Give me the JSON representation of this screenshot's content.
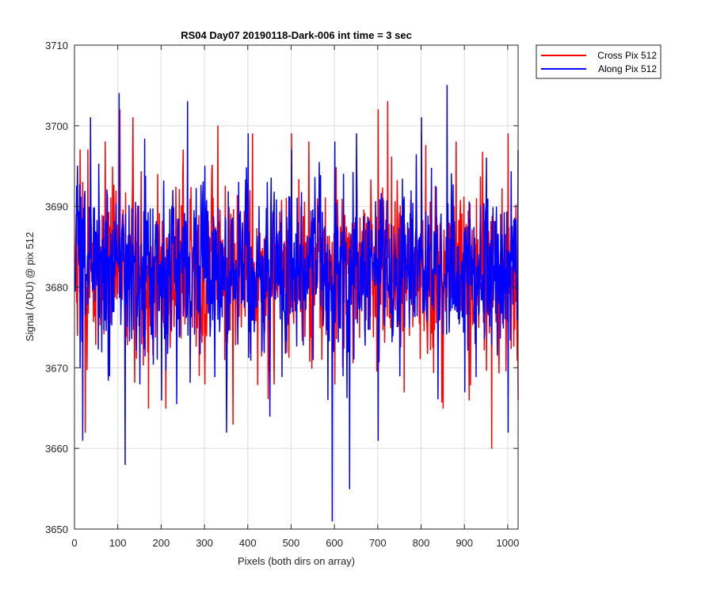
{
  "chart_data": {
    "type": "line",
    "title": "RS04 Day07 20190118-Dark-006 int time = 3 sec",
    "xlabel": "Pixels (both dirs on array)",
    "ylabel": "Signal (ADU) @ pix 512",
    "xlim": [
      0,
      1024
    ],
    "ylim": [
      3650,
      3710
    ],
    "xticks": [
      0,
      100,
      200,
      300,
      400,
      500,
      600,
      700,
      800,
      900,
      1000
    ],
    "yticks": [
      3650,
      3660,
      3670,
      3680,
      3690,
      3700,
      3710
    ],
    "grid": true,
    "legend_position": "outside-top-right",
    "series": [
      {
        "name": "Cross Pix 512",
        "color": "#ff0000",
        "mean": 3682,
        "approx_range": [
          3660,
          3702
        ],
        "x": [
          0,
          6,
          12,
          18,
          24,
          30,
          70,
          104,
          134,
          170,
          210,
          250,
          300,
          330,
          365,
          410,
          460,
          500,
          540,
          600,
          650,
          700,
          722,
          760,
          800,
          850,
          880,
          910,
          962,
          1000,
          1023
        ],
        "values": [
          3682,
          3674,
          3697,
          3693,
          3662,
          3697,
          3698,
          3702,
          3701,
          3665,
          3665,
          3697,
          3668,
          3700,
          3663,
          3699,
          3668,
          3699,
          3698,
          3668,
          3696,
          3702,
          3703,
          3667,
          3699,
          3665,
          3698,
          3666,
          3660,
          3699,
          3666
        ]
      },
      {
        "name": "Along Pix 512",
        "color": "#0000ff",
        "mean": 3682,
        "approx_range": [
          3651,
          3705
        ],
        "x": [
          0,
          6,
          12,
          18,
          36,
          80,
          102,
          116,
          150,
          200,
          260,
          300,
          350,
          400,
          450,
          500,
          550,
          594,
          600,
          634,
          650,
          700,
          750,
          800,
          859,
          900,
          950,
          1000,
          1023
        ],
        "values": [
          3682,
          3695,
          3670,
          3661,
          3701,
          3669,
          3704,
          3658,
          3668,
          3666,
          3703,
          3695,
          3662,
          3699,
          3664,
          3697,
          3671,
          3651,
          3698,
          3655,
          3699,
          3661,
          3669,
          3701,
          3705,
          3667,
          3696,
          3662,
          3697
        ]
      }
    ]
  }
}
